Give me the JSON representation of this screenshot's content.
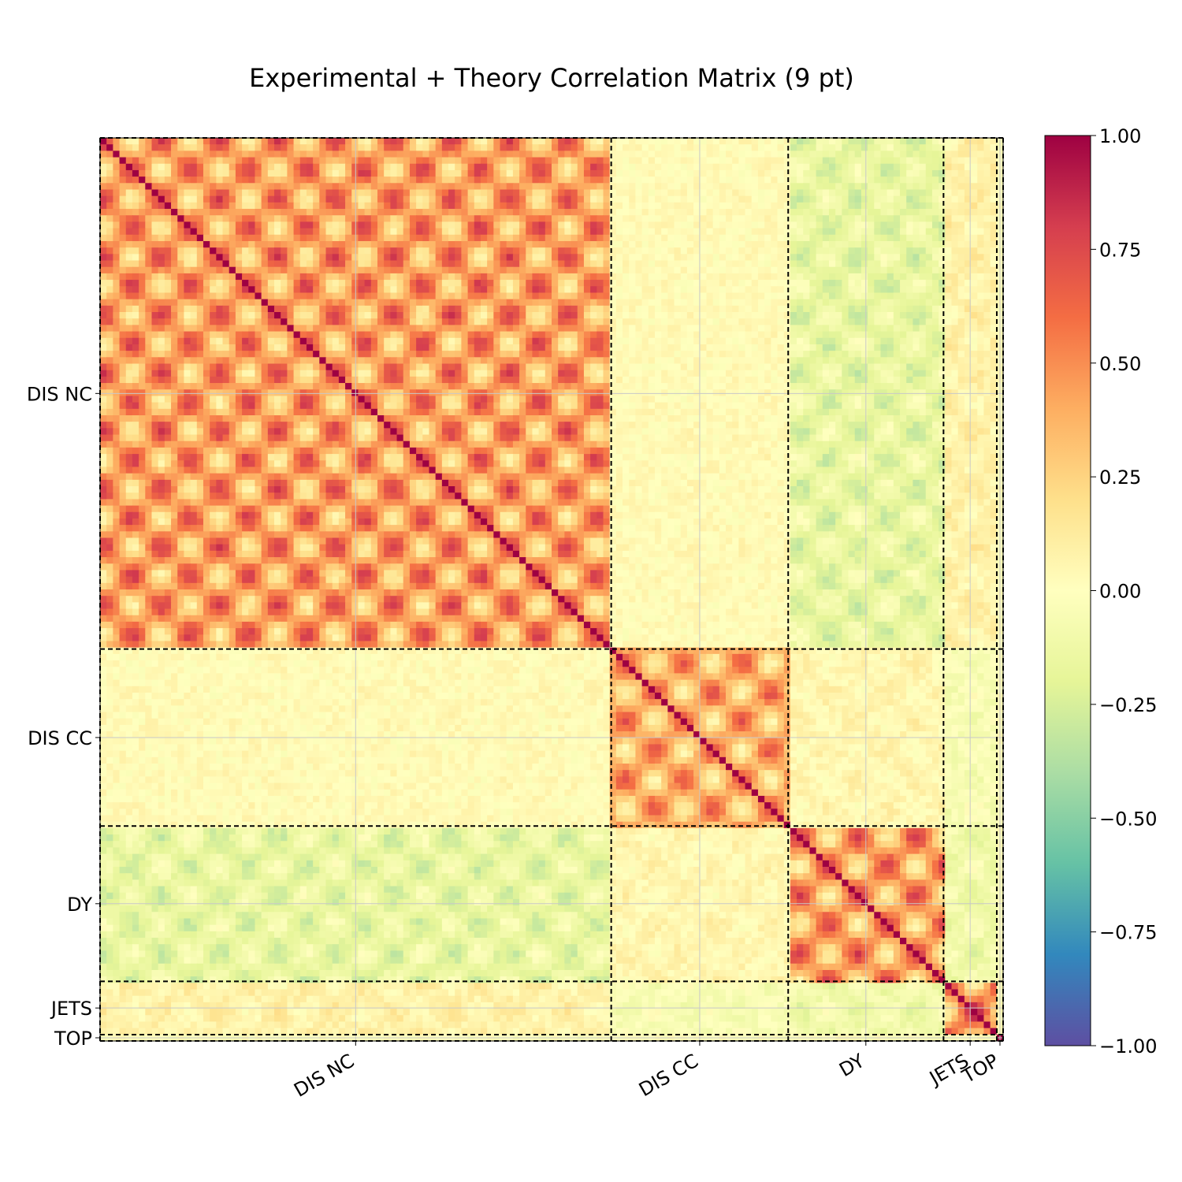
{
  "chart_data": {
    "type": "heatmap",
    "title": "Experimental + Theory Correlation Matrix (9 pt)",
    "xlabel": "",
    "ylabel": "",
    "grid": true,
    "groups": [
      {
        "name": "DIS NC",
        "start": 0,
        "end": 0.566
      },
      {
        "name": "DIS CC",
        "start": 0.566,
        "end": 0.762
      },
      {
        "name": "DY",
        "start": 0.762,
        "end": 0.934
      },
      {
        "name": "JETS",
        "start": 0.934,
        "end": 0.993
      },
      {
        "name": "TOP",
        "start": 0.993,
        "end": 1.0
      }
    ],
    "x_tick_labels": [
      "DIS NC",
      "DIS CC",
      "DY",
      "JETS",
      "TOP"
    ],
    "y_tick_labels": [
      "DIS NC",
      "DIS CC",
      "DY",
      "JETS",
      "TOP"
    ],
    "colorbar": {
      "colormap": "Spectral_r",
      "range": [
        -1.0,
        1.0
      ],
      "ticks": [
        {
          "value": 1.0,
          "label": "1.00"
        },
        {
          "value": 0.75,
          "label": "0.75"
        },
        {
          "value": 0.5,
          "label": "0.50"
        },
        {
          "value": 0.25,
          "label": "0.25"
        },
        {
          "value": 0.0,
          "label": "0.00"
        },
        {
          "value": -0.25,
          "label": "−0.25"
        },
        {
          "value": -0.5,
          "label": "−0.50"
        },
        {
          "value": -0.75,
          "label": "−0.75"
        },
        {
          "value": -1.0,
          "label": "−1.00"
        }
      ],
      "colors": [
        "#9e0142",
        "#d53e4f",
        "#f46d43",
        "#fdae61",
        "#fee08b",
        "#ffffbf",
        "#e6f598",
        "#abdda4",
        "#66c2a5",
        "#3288bd",
        "#5e4fa2"
      ]
    },
    "block_correlations": [
      {
        "row": "DIS NC",
        "col": "DIS NC",
        "value": 0.8
      },
      {
        "row": "DIS NC",
        "col": "DIS CC",
        "value": 0.05
      },
      {
        "row": "DIS NC",
        "col": "DY",
        "value": -0.3
      },
      {
        "row": "DIS NC",
        "col": "JETS",
        "value": 0.15
      },
      {
        "row": "DIS CC",
        "col": "DIS CC",
        "value": 0.7
      },
      {
        "row": "DIS CC",
        "col": "DY",
        "value": 0.1
      },
      {
        "row": "DIS CC",
        "col": "JETS",
        "value": -0.1
      },
      {
        "row": "DY",
        "col": "DY",
        "value": 0.8
      },
      {
        "row": "DY",
        "col": "JETS",
        "value": -0.2
      },
      {
        "row": "JETS",
        "col": "JETS",
        "value": 0.9
      },
      {
        "row": "TOP",
        "col": "TOP",
        "value": 1.0
      }
    ]
  }
}
